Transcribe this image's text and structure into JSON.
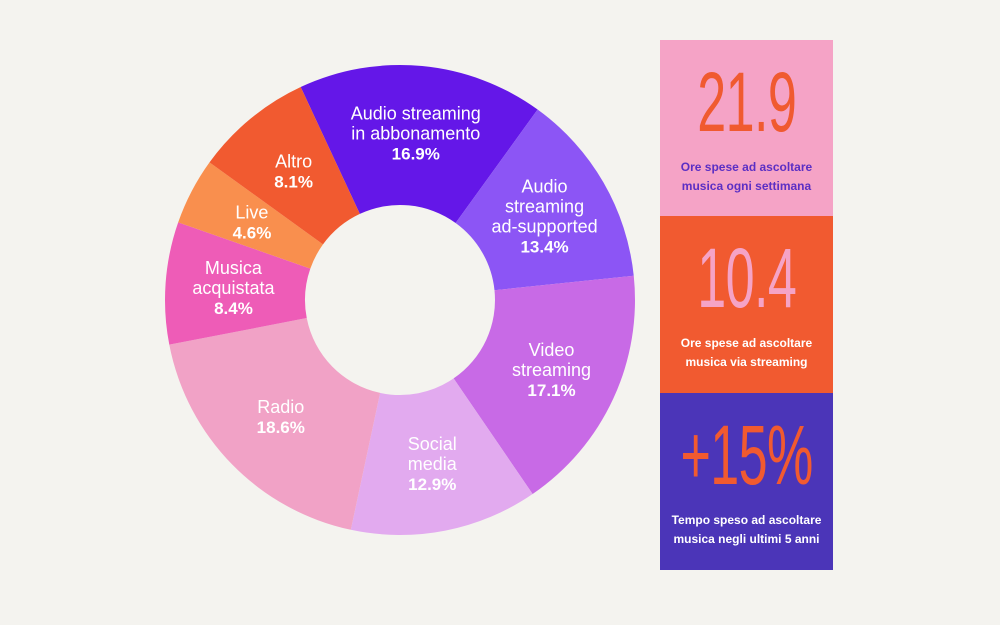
{
  "chart_data": {
    "type": "pie",
    "donut": true,
    "legend": "none",
    "slices": [
      {
        "name_lines": [
          "Audio streaming",
          "in abbonamento"
        ],
        "value": 16.9,
        "label": "16.9%",
        "color": "#6417e8"
      },
      {
        "name_lines": [
          "Audio",
          "streaming",
          "ad-supported"
        ],
        "value": 13.4,
        "label": "13.4%",
        "color": "#8c55f5"
      },
      {
        "name_lines": [
          "Video",
          "streaming"
        ],
        "value": 17.1,
        "label": "17.1%",
        "color": "#c86ae6"
      },
      {
        "name_lines": [
          "Social",
          "media"
        ],
        "value": 12.9,
        "label": "12.9%",
        "color": "#e2aaef"
      },
      {
        "name_lines": [
          "Radio"
        ],
        "value": 18.6,
        "label": "18.6%",
        "color": "#f1a2c6"
      },
      {
        "name_lines": [
          "Musica",
          "acquistata"
        ],
        "value": 8.4,
        "label": "8.4%",
        "color": "#ee5cb7"
      },
      {
        "name_lines": [
          "Live"
        ],
        "value": 4.6,
        "label": "4.6%",
        "color": "#f98f4e"
      },
      {
        "name_lines": [
          "Altro"
        ],
        "value": 8.1,
        "label": "8.1%",
        "color": "#f15a30"
      }
    ]
  },
  "stats": [
    {
      "value": "21.9",
      "caption_lines": [
        "Ore spese ad ascoltare",
        "musica ogni settimana"
      ],
      "bg": "#f5a3c6",
      "num_color": "#f05a30",
      "cap_color": "#5b2fc4"
    },
    {
      "value": "10.4",
      "caption_lines": [
        "Ore spese ad ascoltare",
        "musica via streaming"
      ],
      "bg": "#f15a30",
      "num_color": "#f5a3c6",
      "cap_color": "#ffffff"
    },
    {
      "value": "+15%",
      "caption_lines": [
        "Tempo speso ad ascoltare",
        "musica negli ultimi 5 anni"
      ],
      "bg": "#4b35b8",
      "num_color": "#f15a30",
      "cap_color": "#ffffff"
    }
  ]
}
